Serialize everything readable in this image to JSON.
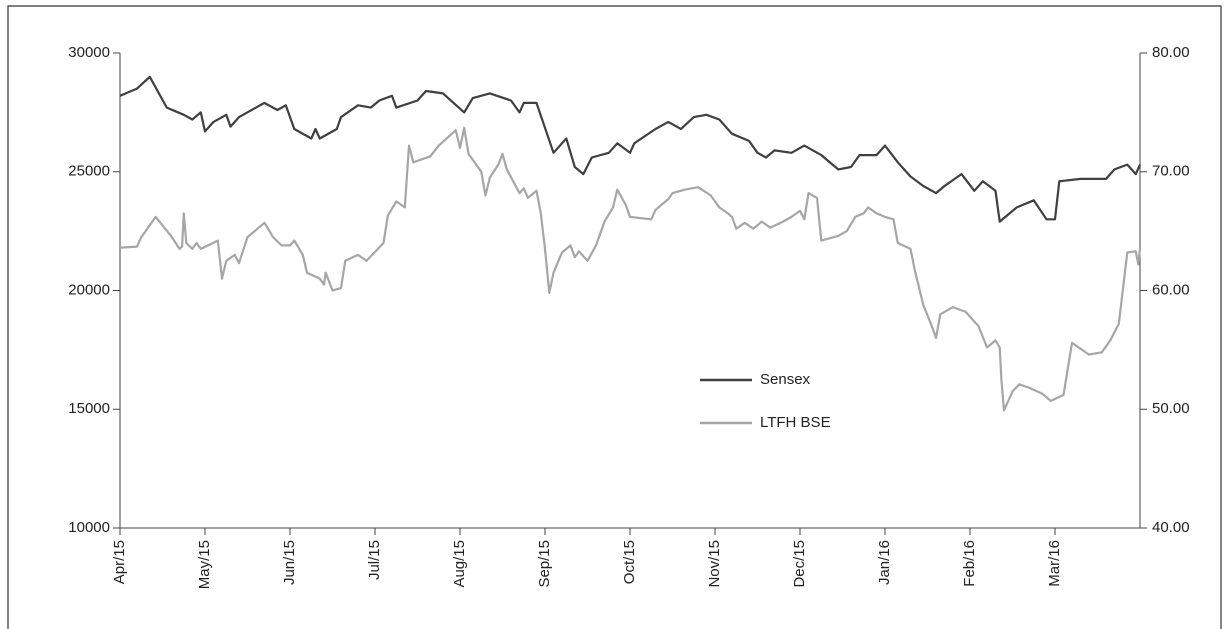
{
  "chart_data": {
    "type": "line",
    "xlim": [
      0,
      12
    ],
    "xticks": [
      {
        "value": 0,
        "label": "Apr/15"
      },
      {
        "value": 1,
        "label": "May/15"
      },
      {
        "value": 2,
        "label": "Jun/15"
      },
      {
        "value": 3,
        "label": "Jul/15"
      },
      {
        "value": 4,
        "label": "Aug/15"
      },
      {
        "value": 5,
        "label": "Sep/15"
      },
      {
        "value": 6,
        "label": "Oct/15"
      },
      {
        "value": 7,
        "label": "Nov/15"
      },
      {
        "value": 8,
        "label": "Dec/15"
      },
      {
        "value": 9,
        "label": "Jan/16"
      },
      {
        "value": 10,
        "label": "Feb/16"
      },
      {
        "value": 11,
        "label": "Mar/16"
      }
    ],
    "ylim": [
      10000,
      30000
    ],
    "yticks": [
      10000,
      15000,
      20000,
      25000,
      30000
    ],
    "y2lim": [
      40,
      80
    ],
    "y2ticks": [
      {
        "value": 40,
        "label": "40.00"
      },
      {
        "value": 50,
        "label": "50.00"
      },
      {
        "value": 60,
        "label": "60.00"
      },
      {
        "value": 70,
        "label": "70.00"
      },
      {
        "value": 80,
        "label": "80.00"
      }
    ],
    "series": [
      {
        "name": "Sensex",
        "color": "#404040",
        "x": [
          0,
          0.2,
          0.35,
          0.55,
          0.75,
          0.85,
          0.95,
          1.0,
          1.1,
          1.25,
          1.3,
          1.4,
          1.6,
          1.7,
          1.85,
          1.95,
          2.05,
          2.25,
          2.3,
          2.35,
          2.55,
          2.6,
          2.8,
          2.95,
          3.05,
          3.2,
          3.25,
          3.5,
          3.6,
          3.8,
          4.05,
          4.15,
          4.35,
          4.6,
          4.7,
          4.75,
          4.9,
          5.1,
          5.25,
          5.35,
          5.45,
          5.55,
          5.75,
          5.85,
          6.0,
          6.05,
          6.3,
          6.45,
          6.6,
          6.75,
          6.9,
          7.05,
          7.2,
          7.4,
          7.5,
          7.6,
          7.7,
          7.9,
          8.05,
          8.25,
          8.45,
          8.6,
          8.7,
          8.9,
          9.0,
          9.15,
          9.3,
          9.45,
          9.6,
          9.7,
          9.9,
          10.05,
          10.15,
          10.3,
          10.35,
          10.55,
          10.75,
          10.9,
          11.0,
          11.05,
          11.3,
          11.5,
          11.6,
          11.7,
          11.85,
          11.95,
          12.0
        ],
        "values": [
          28200,
          28500,
          29000,
          27700,
          27400,
          27200,
          27500,
          26700,
          27100,
          27400,
          26900,
          27300,
          27700,
          27900,
          27600,
          27800,
          26800,
          26400,
          26800,
          26400,
          26800,
          27300,
          27800,
          27700,
          28000,
          28200,
          27700,
          28000,
          28400,
          28300,
          27500,
          28100,
          28300,
          28000,
          27500,
          27900,
          27900,
          25800,
          26400,
          25200,
          24900,
          25600,
          25800,
          26200,
          25800,
          26200,
          26800,
          27100,
          26800,
          27300,
          27400,
          27200,
          26600,
          26300,
          25800,
          25600,
          25900,
          25800,
          26100,
          25700,
          25100,
          25200,
          25700,
          25700,
          26100,
          25400,
          24800,
          24400,
          24100,
          24400,
          24900,
          24200,
          24600,
          24200,
          22900,
          23500,
          23800,
          23000,
          23000,
          24600,
          24700,
          24700,
          24700,
          25100,
          25300,
          24900,
          25300
        ]
      },
      {
        "name": "LTFH BSE",
        "color": "#a6a6a6",
        "axis": "y2",
        "x": [
          0,
          0.2,
          0.25,
          0.35,
          0.42,
          0.6,
          0.7,
          0.73,
          0.75,
          0.78,
          0.85,
          0.9,
          0.95,
          1.15,
          1.2,
          1.25,
          1.35,
          1.4,
          1.5,
          1.7,
          1.8,
          1.9,
          2.0,
          2.05,
          2.15,
          2.2,
          2.35,
          2.4,
          2.42,
          2.5,
          2.6,
          2.65,
          2.8,
          2.9,
          3.1,
          3.15,
          3.25,
          3.35,
          3.4,
          3.45,
          3.65,
          3.75,
          3.95,
          4.0,
          4.05,
          4.1,
          4.25,
          4.3,
          4.35,
          4.45,
          4.5,
          4.55,
          4.7,
          4.75,
          4.8,
          4.9,
          4.95,
          5.0,
          5.05,
          5.1,
          5.2,
          5.3,
          5.35,
          5.4,
          5.5,
          5.6,
          5.7,
          5.8,
          5.85,
          5.95,
          6.0,
          6.25,
          6.3,
          6.45,
          6.5,
          6.65,
          6.8,
          6.95,
          7.05,
          7.15,
          7.2,
          7.25,
          7.35,
          7.45,
          7.55,
          7.65,
          7.8,
          7.9,
          8.0,
          8.05,
          8.1,
          8.2,
          8.25,
          8.45,
          8.55,
          8.65,
          8.75,
          8.8,
          8.9,
          9.0,
          9.1,
          9.15,
          9.3,
          9.35,
          9.45,
          9.55,
          9.6,
          9.65,
          9.8,
          9.95,
          10.1,
          10.2,
          10.3,
          10.35,
          10.37,
          10.4,
          10.5,
          10.58,
          10.7,
          10.85,
          10.95,
          11.1,
          11.2,
          11.4,
          11.55,
          11.65,
          11.75,
          11.85,
          11.95,
          11.98,
          12.0
        ],
        "values": [
          63.6,
          63.7,
          64.5,
          65.5,
          66.2,
          64.6,
          63.5,
          63.7,
          66.5,
          64,
          63.5,
          64,
          63.5,
          64.2,
          61,
          62.5,
          63,
          62.3,
          64.5,
          65.7,
          64.5,
          63.8,
          63.8,
          64.2,
          63,
          61.5,
          61,
          60.5,
          61.5,
          60,
          60.2,
          62.5,
          63,
          62.5,
          64,
          66.3,
          67.5,
          67,
          72.2,
          70.8,
          71.3,
          72.2,
          73.5,
          72,
          73.7,
          71.5,
          70,
          68,
          69.5,
          70.6,
          71.5,
          70.2,
          68.2,
          68.6,
          67.8,
          68.4,
          66.5,
          63.5,
          59.8,
          61.5,
          63.2,
          63.8,
          62.8,
          63.3,
          62.5,
          63.8,
          65.8,
          67,
          68.5,
          67.2,
          66.2,
          66,
          66.8,
          67.7,
          68.2,
          68.5,
          68.7,
          68,
          67,
          66.5,
          66.2,
          65.2,
          65.7,
          65.2,
          65.8,
          65.3,
          65.8,
          66.2,
          66.7,
          66,
          68.2,
          67.8,
          64.2,
          64.6,
          65,
          66.2,
          66.5,
          67,
          66.5,
          66.2,
          66,
          64,
          63.5,
          61.7,
          58.8,
          57,
          56,
          58,
          58.6,
          58.2,
          57,
          55.2,
          55.8,
          55.2,
          52.5,
          49.9,
          51.5,
          52.1,
          51.8,
          51.3,
          50.7,
          51.2,
          55.6,
          54.6,
          54.8,
          55.8,
          57.2,
          63.2,
          63.3,
          62.2,
          63.6
        ]
      }
    ]
  }
}
